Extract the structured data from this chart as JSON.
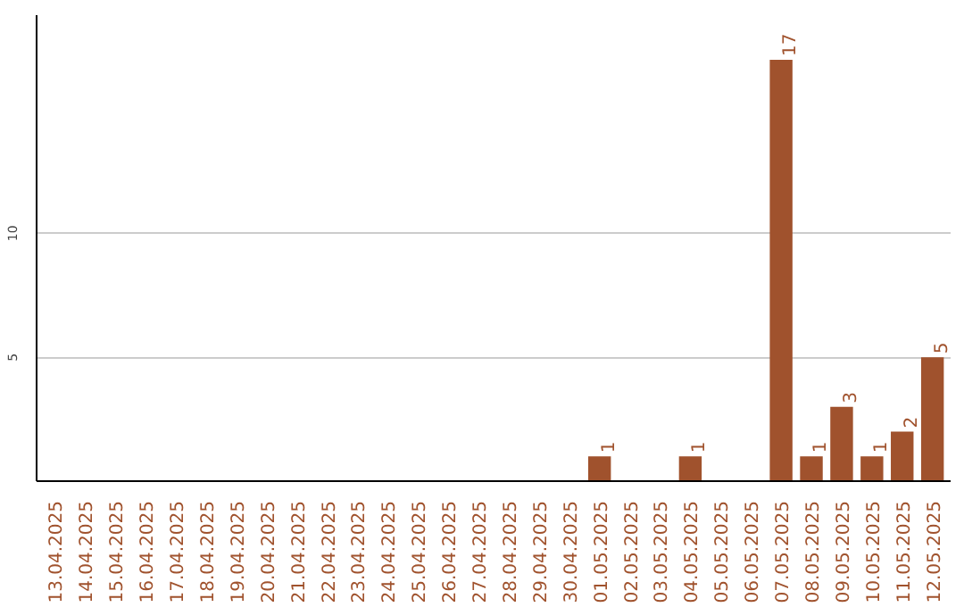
{
  "chart_data": {
    "type": "bar",
    "categories": [
      "13.04.2025",
      "14.04.2025",
      "15.04.2025",
      "16.04.2025",
      "17.04.2025",
      "18.04.2025",
      "19.04.2025",
      "20.04.2025",
      "21.04.2025",
      "22.04.2025",
      "23.04.2025",
      "24.04.2025",
      "25.04.2025",
      "26.04.2025",
      "27.04.2025",
      "28.04.2025",
      "29.04.2025",
      "30.04.2025",
      "01.05.2025",
      "02.05.2025",
      "03.05.2025",
      "04.05.2025",
      "05.05.2025",
      "06.05.2025",
      "07.05.2025",
      "08.05.2025",
      "09.05.2025",
      "10.05.2025",
      "11.05.2025",
      "12.05.2025"
    ],
    "values": [
      0,
      0,
      0,
      0,
      0,
      0,
      0,
      0,
      0,
      0,
      0,
      0,
      0,
      0,
      0,
      0,
      0,
      0,
      1,
      0,
      0,
      1,
      0,
      0,
      17,
      1,
      3,
      1,
      2,
      5
    ],
    "value_labels": [
      null,
      null,
      null,
      null,
      null,
      null,
      null,
      null,
      null,
      null,
      null,
      null,
      null,
      null,
      null,
      null,
      null,
      null,
      "1",
      null,
      null,
      "1",
      null,
      null,
      "17",
      "1",
      "3",
      "1",
      "2",
      "5"
    ],
    "color": "#a0522d",
    "ylim": [
      0,
      18.8
    ],
    "yticks": [
      5,
      10
    ],
    "grid": "y"
  }
}
